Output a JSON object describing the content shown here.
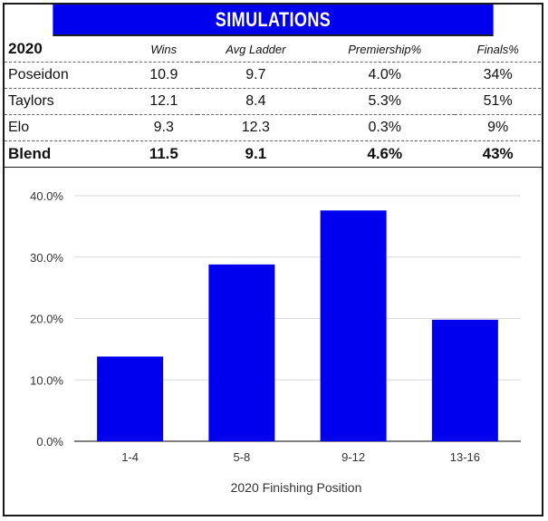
{
  "title": "SIMULATIONS",
  "table": {
    "year": "2020",
    "columns": [
      "Wins",
      "Avg Ladder",
      "Premiership%",
      "Finals%"
    ],
    "rows": [
      {
        "name": "Poseidon",
        "values": [
          "10.9",
          "9.7",
          "4.0%",
          "34%"
        ]
      },
      {
        "name": "Taylors",
        "values": [
          "12.1",
          "8.4",
          "5.3%",
          "51%"
        ]
      },
      {
        "name": "Elo",
        "values": [
          "9.3",
          "12.3",
          "0.3%",
          "9%"
        ]
      }
    ],
    "blend": {
      "name": "Blend",
      "values": [
        "11.5",
        "9.1",
        "4.6%",
        "43%"
      ]
    }
  },
  "chart_data": {
    "type": "bar",
    "categories": [
      "1-4",
      "5-8",
      "9-12",
      "13-16"
    ],
    "values": [
      13.8,
      28.8,
      37.6,
      19.8
    ],
    "xlabel": "2020 Finishing Position",
    "ylabel": "",
    "ylim": [
      0,
      40
    ],
    "yticks": [
      "0.0%",
      "10.0%",
      "20.0%",
      "30.0%",
      "40.0%"
    ],
    "bar_color": "#0000ee",
    "grid": true
  }
}
